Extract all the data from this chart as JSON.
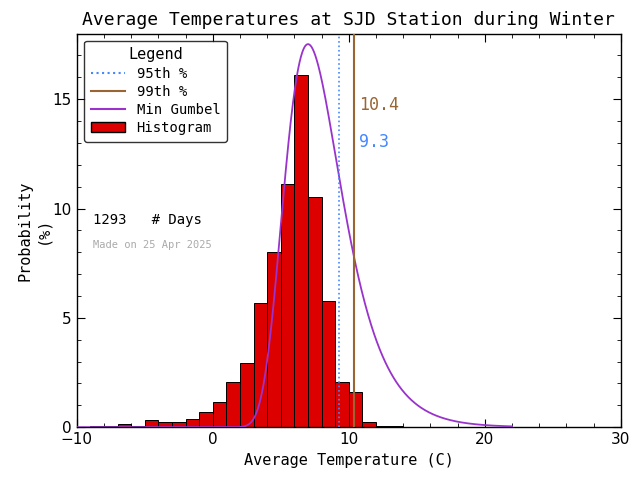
{
  "title": "Average Temperatures at SJD Station during Winter",
  "xlabel": "Average Temperature (C)",
  "ylabel": "Probability\n(%)",
  "xlim": [
    -10,
    30
  ],
  "ylim": [
    0,
    18
  ],
  "xticks": [
    -10,
    0,
    10,
    20,
    30
  ],
  "yticks": [
    0,
    5,
    10,
    15
  ],
  "background_color": "#ffffff",
  "bar_color": "#dd0000",
  "bar_edge_color": "#000000",
  "gumbel_color": "#9933cc",
  "p95_color": "#4488ff",
  "p99_color": "#996633",
  "p95_value": 9.3,
  "p99_value": 10.4,
  "n_days": 1293,
  "made_on": "Made on 25 Apr 2025",
  "bin_centers": [
    -8.5,
    -7.5,
    -6.5,
    -5.5,
    -4.5,
    -3.5,
    -2.5,
    -1.5,
    -0.5,
    0.5,
    1.5,
    2.5,
    3.5,
    4.5,
    5.5,
    6.5,
    7.5,
    8.5,
    9.5,
    10.5,
    11.5,
    12.5,
    13.5,
    14.5,
    15.5,
    16.5,
    17.5,
    18.5,
    19.5
  ],
  "bin_heights": [
    0.077,
    0.077,
    0.154,
    0.077,
    0.308,
    0.231,
    0.231,
    0.385,
    0.693,
    1.156,
    2.082,
    2.93,
    5.68,
    7.993,
    11.136,
    16.123,
    10.519,
    5.757,
    2.082,
    1.619,
    0.231,
    0.077,
    0.077,
    0.0,
    0.0,
    0.0,
    0.0,
    0.0,
    0.0
  ],
  "bin_width": 1.0,
  "gumbel_mu": 7.0,
  "gumbel_beta": 2.1,
  "title_fontsize": 13,
  "axis_fontsize": 11,
  "tick_fontsize": 11,
  "legend_fontsize": 10,
  "annotation_fontsize": 12
}
